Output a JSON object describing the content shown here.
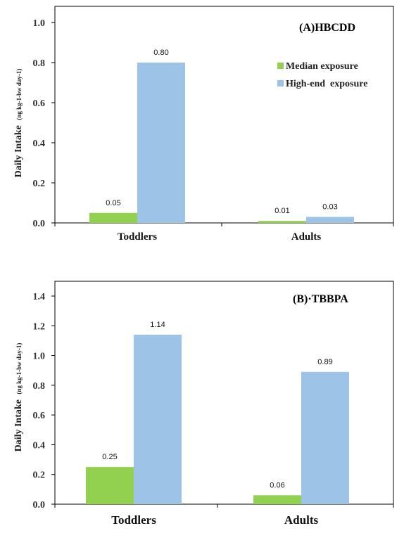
{
  "chart_data": [
    {
      "type": "bar",
      "title": "(A)HBCDD",
      "ylabel_main": "Daily Intake",
      "ylabel_units": "(ng kg-1-bw day-1)",
      "ylim": [
        0,
        1.0
      ],
      "yticks": [
        "0.0",
        "0.2",
        "0.4",
        "0.6",
        "0.8",
        "1.0"
      ],
      "categories": [
        "Toddlers",
        "Adults"
      ],
      "series": [
        {
          "name": "Median exposure",
          "color": "#92d050",
          "values": [
            0.05,
            0.01
          ],
          "labels": [
            "0.05",
            "0.01"
          ]
        },
        {
          "name": "High-end  exposure",
          "color": "#9dc3e6",
          "values": [
            0.8,
            0.03
          ],
          "labels": [
            "0.80",
            "0.03"
          ]
        }
      ],
      "legend": "top-right",
      "grid": false
    },
    {
      "type": "bar",
      "title": "(B)·TBBPA",
      "ylabel_main": "Daily Intake",
      "ylabel_units": "(ng kg-1-bw day-1)",
      "ylim": [
        0,
        1.4
      ],
      "yticks": [
        "0.0",
        "0.2",
        "0.4",
        "0.6",
        "0.8",
        "1.0",
        "1.2",
        "1.4"
      ],
      "categories": [
        "Toddlers",
        "Adults"
      ],
      "series": [
        {
          "name": "Median exposure",
          "color": "#92d050",
          "values": [
            0.25,
            0.06
          ],
          "labels": [
            "0.25",
            "0.06"
          ]
        },
        {
          "name": "High-end  exposure",
          "color": "#9dc3e6",
          "values": [
            1.14,
            0.89
          ],
          "labels": [
            "1.14",
            "0.89"
          ]
        }
      ],
      "legend": "none",
      "grid": false
    }
  ]
}
